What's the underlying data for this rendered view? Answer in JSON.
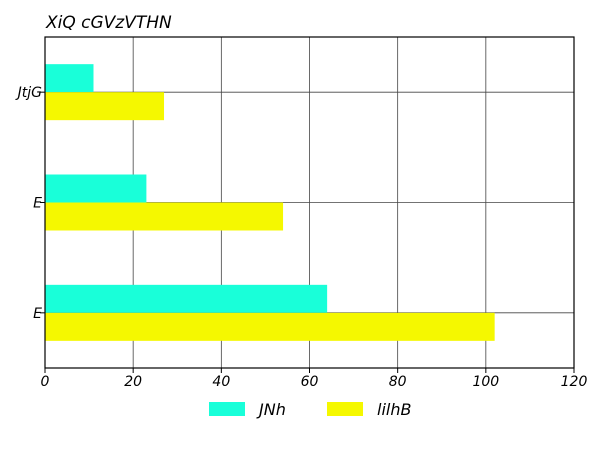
{
  "chart_data": {
    "type": "bar",
    "orientation": "horizontal",
    "title": "XiQ   cGVzVTHN",
    "xlabel": "",
    "ylabel": "",
    "categories": [
      "JtjG",
      "E",
      "E"
    ],
    "series": [
      {
        "name": "JNh",
        "values": [
          11,
          23,
          64
        ],
        "color": "#19ffd9"
      },
      {
        "name": "lilhB",
        "values": [
          27,
          54,
          102
        ],
        "color": "#f5f800"
      }
    ],
    "xlim": [
      0,
      120
    ],
    "xticks": [
      0,
      20,
      40,
      60,
      80,
      100,
      120
    ],
    "grid": true,
    "legend_position": "bottom"
  }
}
